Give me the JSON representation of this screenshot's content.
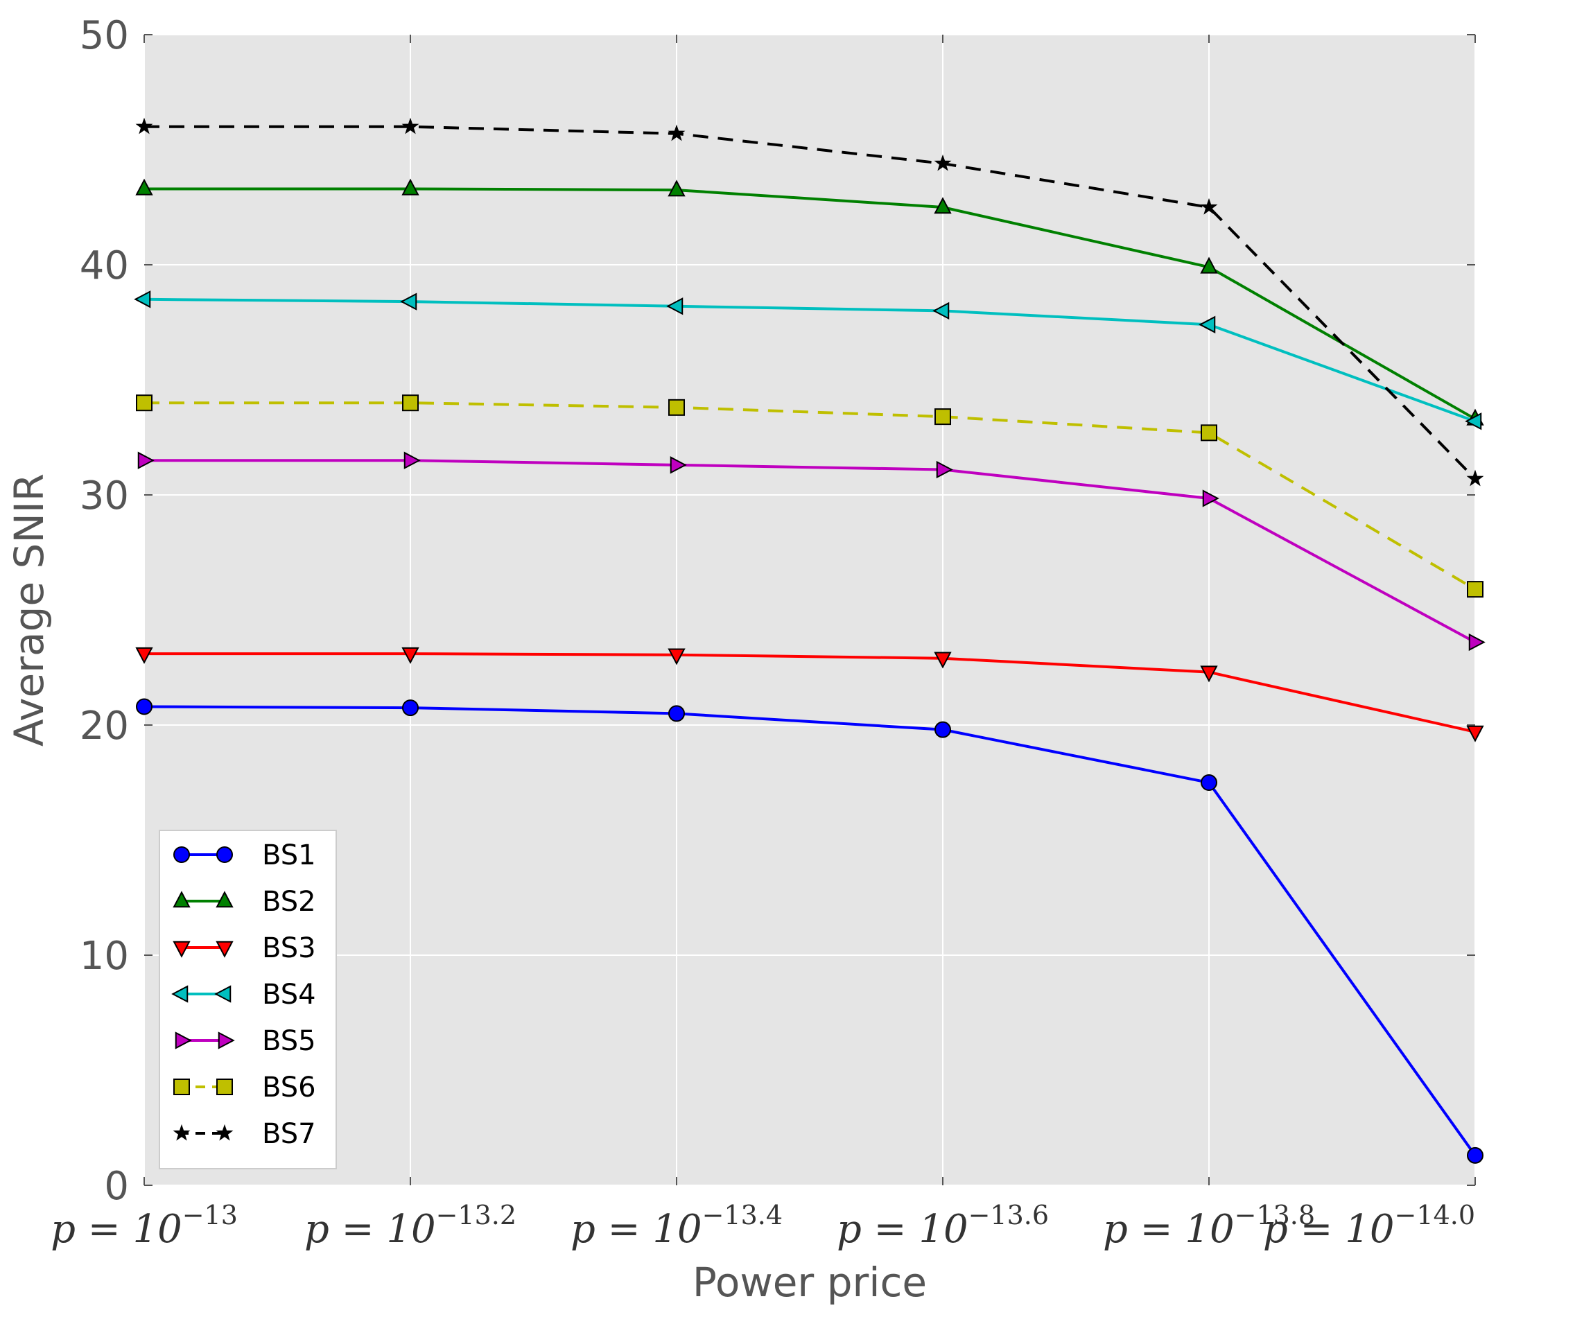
{
  "chart_data": {
    "type": "line",
    "title": "",
    "xlabel": "Power price",
    "ylabel": "Average SNIR",
    "ylim": [
      0,
      50
    ],
    "yticks": [
      0,
      10,
      20,
      30,
      40,
      50
    ],
    "grid": true,
    "legend_position": "lower-left",
    "categories": [
      {
        "base": "p = 10",
        "exp": "−13"
      },
      {
        "base": "p = 10",
        "exp": "−13.2"
      },
      {
        "base": "p = 10",
        "exp": "−13.4"
      },
      {
        "base": "p = 10",
        "exp": "−13.6"
      },
      {
        "base": "p = 10",
        "exp": "−13.8"
      },
      {
        "base": "p = 10",
        "exp": "−14.0"
      }
    ],
    "series": [
      {
        "name": "BS1",
        "color": "#0000ff",
        "marker": "circle",
        "dashed": false,
        "values": [
          20.8,
          20.75,
          20.5,
          19.8,
          17.5,
          1.3
        ]
      },
      {
        "name": "BS2",
        "color": "#008000",
        "marker": "triangle-up",
        "dashed": false,
        "values": [
          43.3,
          43.3,
          43.25,
          42.5,
          39.9,
          33.3
        ]
      },
      {
        "name": "BS3",
        "color": "#ff0000",
        "marker": "triangle-down",
        "dashed": false,
        "values": [
          23.1,
          23.1,
          23.05,
          22.9,
          22.3,
          19.7
        ]
      },
      {
        "name": "BS4",
        "color": "#00bfbf",
        "marker": "triangle-left",
        "dashed": false,
        "values": [
          38.5,
          38.4,
          38.2,
          38.0,
          37.4,
          33.2
        ]
      },
      {
        "name": "BS5",
        "color": "#bf00bf",
        "marker": "triangle-right",
        "dashed": false,
        "values": [
          31.5,
          31.5,
          31.3,
          31.1,
          29.85,
          23.6
        ]
      },
      {
        "name": "BS6",
        "color": "#bfbf00",
        "marker": "square",
        "dashed": true,
        "values": [
          34.0,
          34.0,
          33.8,
          33.4,
          32.7,
          25.9
        ]
      },
      {
        "name": "BS7",
        "color": "#000000",
        "marker": "star",
        "dashed": true,
        "values": [
          46.0,
          46.0,
          45.7,
          44.4,
          42.5,
          30.7
        ]
      }
    ]
  }
}
